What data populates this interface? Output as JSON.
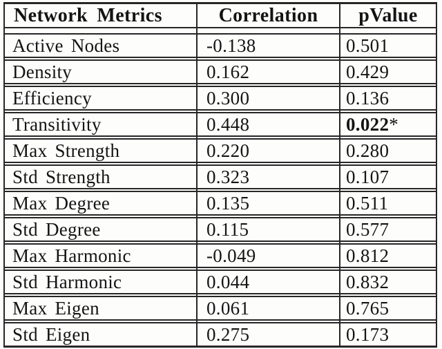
{
  "page": {
    "background": "#fdfdfc"
  },
  "table": {
    "colors": {
      "line": "#262626",
      "text": "#141414",
      "background": "#fdfdfc"
    },
    "header": {
      "metric": "Network Metrics",
      "correlation": "Correlation",
      "pvalue": "pValue"
    },
    "rows": [
      {
        "metric": "Active Nodes",
        "correlation": "-0.138",
        "pvalue": "0.501",
        "significant": false
      },
      {
        "metric": "Density",
        "correlation": "0.162",
        "pvalue": "0.429",
        "significant": false
      },
      {
        "metric": "Efficiency",
        "correlation": "0.300",
        "pvalue": "0.136",
        "significant": false
      },
      {
        "metric": "Transitivity",
        "correlation": "0.448",
        "pvalue": "0.022",
        "pvalue_suffix": "*",
        "significant": true
      },
      {
        "metric": "Max Strength",
        "correlation": "0.220",
        "pvalue": "0.280",
        "significant": false
      },
      {
        "metric": "Std Strength",
        "correlation": "0.323",
        "pvalue": "0.107",
        "significant": false
      },
      {
        "metric": "Max Degree",
        "correlation": "0.135",
        "pvalue": "0.511",
        "significant": false
      },
      {
        "metric": "Std Degree",
        "correlation": "0.115",
        "pvalue": "0.577",
        "significant": false
      },
      {
        "metric": "Max Harmonic",
        "correlation": "-0.049",
        "pvalue": "0.812",
        "significant": false
      },
      {
        "metric": "Std Harmonic",
        "correlation": "0.044",
        "pvalue": "0.832",
        "significant": false
      },
      {
        "metric": "Max Eigen",
        "correlation": "0.061",
        "pvalue": "0.765",
        "significant": false
      },
      {
        "metric": "Std Eigen",
        "correlation": "0.275",
        "pvalue": "0.173",
        "significant": false
      }
    ]
  },
  "chart_data": {
    "type": "table",
    "columns": [
      "Network Metrics",
      "Correlation",
      "pValue"
    ],
    "rows": [
      [
        "Active Nodes",
        -0.138,
        0.501
      ],
      [
        "Density",
        0.162,
        0.429
      ],
      [
        "Efficiency",
        0.3,
        0.136
      ],
      [
        "Transitivity",
        0.448,
        0.022
      ],
      [
        "Max Strength",
        0.22,
        0.28
      ],
      [
        "Std Strength",
        0.323,
        0.107
      ],
      [
        "Max Degree",
        0.135,
        0.511
      ],
      [
        "Std Degree",
        0.115,
        0.577
      ],
      [
        "Max Harmonic",
        -0.049,
        0.812
      ],
      [
        "Std Harmonic",
        0.044,
        0.832
      ],
      [
        "Max Eigen",
        0.061,
        0.765
      ],
      [
        "Std Eigen",
        0.275,
        0.173
      ]
    ],
    "annotations": [
      "Transitivity pValue 0.022 rendered bold with asterisk (significant)"
    ]
  }
}
